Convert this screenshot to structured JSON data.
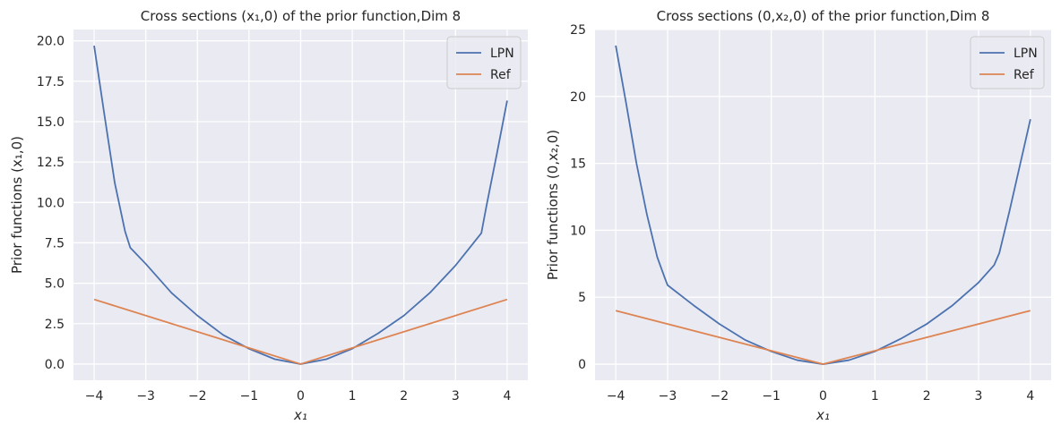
{
  "chart_data": [
    {
      "type": "line",
      "title": "Cross sections (x₁,0) of the prior function,Dim 8",
      "xlabel": "x₁",
      "ylabel": "Prior functions (x₁,0)",
      "xlim": [
        -4.4,
        4.4
      ],
      "ylim": [
        -1.0,
        20.7
      ],
      "xticks": [
        -4,
        -3,
        -2,
        -1,
        0,
        1,
        2,
        3,
        4
      ],
      "xtick_labels": [
        "−4",
        "−3",
        "−2",
        "−1",
        "0",
        "1",
        "2",
        "3",
        "4"
      ],
      "yticks": [
        0,
        2.5,
        5,
        7.5,
        10,
        12.5,
        15,
        17.5,
        20
      ],
      "ytick_labels": [
        "0.0",
        "2.5",
        "5.0",
        "7.5",
        "10.0",
        "12.5",
        "15.0",
        "17.5",
        "20.0"
      ],
      "legend_position": "top-right",
      "series": [
        {
          "name": "LPN",
          "color": "#4c72b0",
          "x": [
            -4.0,
            -3.8,
            -3.6,
            -3.4,
            -3.3,
            -3.0,
            -2.5,
            -2.0,
            -1.5,
            -1.0,
            -0.5,
            0.0,
            0.5,
            1.0,
            1.5,
            2.0,
            2.5,
            3.0,
            3.3,
            3.5,
            3.6,
            3.8,
            4.0
          ],
          "y": [
            19.7,
            15.4,
            11.2,
            8.2,
            7.2,
            6.2,
            4.4,
            3.0,
            1.8,
            0.95,
            0.3,
            0.0,
            0.3,
            0.95,
            1.9,
            3.0,
            4.4,
            6.1,
            7.3,
            8.1,
            9.8,
            13.0,
            16.3
          ]
        },
        {
          "name": "Ref",
          "color": "#dd8452",
          "x": [
            -4.0,
            0.0,
            4.0
          ],
          "y": [
            4.0,
            0.0,
            4.0
          ]
        }
      ]
    },
    {
      "type": "line",
      "title": "Cross sections (0,x₂,0) of the prior function,Dim 8",
      "xlabel": "x₁",
      "ylabel": "Prior functions (0,x₂,0)",
      "xlim": [
        -4.4,
        4.4
      ],
      "ylim": [
        -1.2,
        25.0
      ],
      "xticks": [
        -4,
        -3,
        -2,
        -1,
        0,
        1,
        2,
        3,
        4
      ],
      "xtick_labels": [
        "−4",
        "−3",
        "−2",
        "−1",
        "0",
        "1",
        "2",
        "3",
        "4"
      ],
      "yticks": [
        0,
        5,
        10,
        15,
        20,
        25
      ],
      "ytick_labels": [
        "0",
        "5",
        "10",
        "15",
        "20",
        "25"
      ],
      "legend_position": "top-right",
      "series": [
        {
          "name": "LPN",
          "color": "#4c72b0",
          "x": [
            -4.0,
            -3.8,
            -3.6,
            -3.4,
            -3.2,
            -3.05,
            -3.0,
            -2.5,
            -2.0,
            -1.5,
            -1.0,
            -0.5,
            0.0,
            0.5,
            1.0,
            1.5,
            2.0,
            2.5,
            3.0,
            3.3,
            3.4,
            3.6,
            3.8,
            4.0
          ],
          "y": [
            23.8,
            19.5,
            15.0,
            11.2,
            8.0,
            6.4,
            5.9,
            4.4,
            3.0,
            1.8,
            0.95,
            0.3,
            0.0,
            0.3,
            0.95,
            1.9,
            3.0,
            4.4,
            6.1,
            7.4,
            8.3,
            11.5,
            14.9,
            18.3
          ]
        },
        {
          "name": "Ref",
          "color": "#dd8452",
          "x": [
            -4.0,
            0.0,
            4.0
          ],
          "y": [
            4.0,
            0.0,
            4.0
          ]
        }
      ]
    }
  ]
}
